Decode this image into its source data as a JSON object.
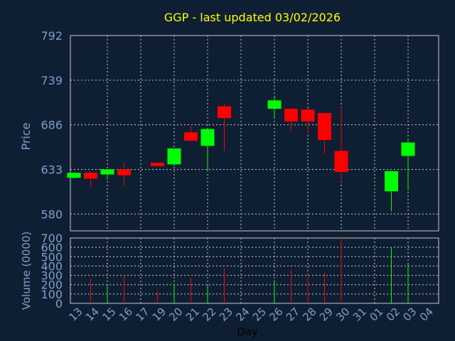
{
  "title": "GGP - last updated 03/02/2026",
  "colors": {
    "background": "#0f1f33",
    "title": "#ffff00",
    "axis_text": "#7f9fc7",
    "grid": "#c8c8c8",
    "up": "#00ff00",
    "down": "#ff0000",
    "frame": "#c8c8c8"
  },
  "chart_data": [
    {
      "type": "candlestick",
      "ylabel": "Price",
      "ylim": [
        560,
        792
      ],
      "yticks": [
        792,
        739,
        686,
        633,
        580
      ],
      "grid": true,
      "categories": [
        "13",
        "14",
        "15",
        "16",
        "17",
        "19",
        "20",
        "21",
        "22",
        "23",
        "24",
        "25",
        "26",
        "27",
        "28",
        "29",
        "30",
        "31",
        "01",
        "02",
        "03",
        "04"
      ],
      "candles": [
        {
          "day": "13",
          "open": 623,
          "close": 629,
          "high": 629,
          "low": 622,
          "dir": "up"
        },
        {
          "day": "14",
          "open": 629,
          "close": 622,
          "high": 630,
          "low": 612,
          "dir": "down"
        },
        {
          "day": "15",
          "open": 627,
          "close": 633,
          "high": 633,
          "low": 621,
          "dir": "up"
        },
        {
          "day": "16",
          "open": 633,
          "close": 626,
          "high": 641,
          "low": 614,
          "dir": "down"
        },
        {
          "day": "19",
          "open": 641,
          "close": 637,
          "high": 641,
          "low": 637,
          "dir": "down"
        },
        {
          "day": "20",
          "open": 639,
          "close": 658,
          "high": 658,
          "low": 637,
          "dir": "up"
        },
        {
          "day": "21",
          "open": 677,
          "close": 667,
          "high": 685,
          "low": 667,
          "dir": "down"
        },
        {
          "day": "22",
          "open": 661,
          "close": 681,
          "high": 681,
          "low": 630,
          "dir": "up"
        },
        {
          "day": "23",
          "open": 708,
          "close": 694,
          "high": 711,
          "low": 655,
          "dir": "down"
        },
        {
          "day": "26",
          "open": 705,
          "close": 715,
          "high": 719,
          "low": 694,
          "dir": "up"
        },
        {
          "day": "27",
          "open": 705,
          "close": 690,
          "high": 705,
          "low": 679,
          "dir": "down"
        },
        {
          "day": "28",
          "open": 704,
          "close": 690,
          "high": 706,
          "low": 676,
          "dir": "down"
        },
        {
          "day": "29",
          "open": 700,
          "close": 668,
          "high": 700,
          "low": 651,
          "dir": "down"
        },
        {
          "day": "30",
          "open": 655,
          "close": 630,
          "high": 707,
          "low": 618,
          "dir": "down"
        },
        {
          "day": "02",
          "open": 607,
          "close": 631,
          "high": 631,
          "low": 583,
          "dir": "up"
        },
        {
          "day": "03",
          "open": 649,
          "close": 665,
          "high": 667,
          "low": 608,
          "dir": "up"
        }
      ]
    },
    {
      "type": "bar",
      "ylabel": "Volume (0000)",
      "xlabel": "Day",
      "ylim": [
        0,
        700
      ],
      "yticks": [
        700,
        600,
        500,
        400,
        300,
        200,
        100,
        0
      ],
      "categories": [
        "13",
        "14",
        "15",
        "16",
        "17",
        "19",
        "20",
        "21",
        "22",
        "23",
        "24",
        "25",
        "26",
        "27",
        "28",
        "29",
        "30",
        "31",
        "01",
        "02",
        "03",
        "04"
      ],
      "bars": [
        {
          "day": "14",
          "value": 260,
          "dir": "down"
        },
        {
          "day": "15",
          "value": 200,
          "dir": "up"
        },
        {
          "day": "16",
          "value": 300,
          "dir": "down"
        },
        {
          "day": "19",
          "value": 140,
          "dir": "down"
        },
        {
          "day": "20",
          "value": 210,
          "dir": "up"
        },
        {
          "day": "21",
          "value": 275,
          "dir": "down"
        },
        {
          "day": "22",
          "value": 200,
          "dir": "up"
        },
        {
          "day": "23",
          "value": 370,
          "dir": "down"
        },
        {
          "day": "26",
          "value": 250,
          "dir": "up"
        },
        {
          "day": "27",
          "value": 360,
          "dir": "down"
        },
        {
          "day": "28",
          "value": 310,
          "dir": "down"
        },
        {
          "day": "29",
          "value": 330,
          "dir": "down"
        },
        {
          "day": "30",
          "value": 700,
          "dir": "down"
        },
        {
          "day": "02",
          "value": 600,
          "dir": "up"
        },
        {
          "day": "03",
          "value": 420,
          "dir": "up"
        }
      ]
    }
  ]
}
